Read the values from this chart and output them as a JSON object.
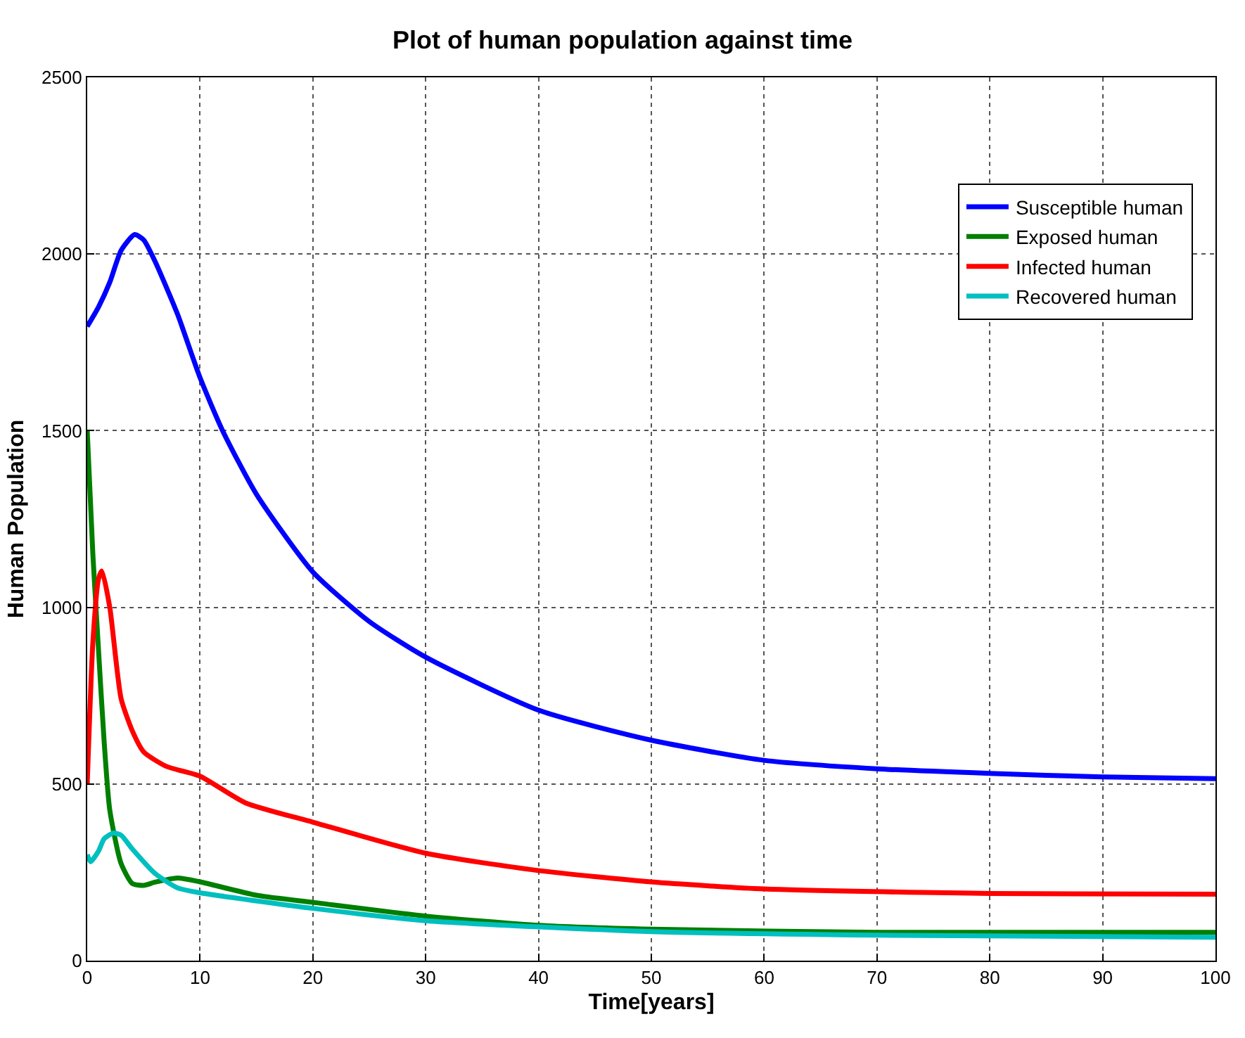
{
  "chart_data": {
    "type": "line",
    "title": "Plot of human population against time",
    "xlabel": "Time[years]",
    "ylabel": "Human Population",
    "xlim": [
      0,
      100
    ],
    "ylim": [
      0,
      2500
    ],
    "xticks": [
      0,
      10,
      20,
      30,
      40,
      50,
      60,
      70,
      80,
      90,
      100
    ],
    "yticks": [
      0,
      500,
      1000,
      1500,
      2000,
      2500
    ],
    "grid": true,
    "legend": "top right",
    "line_style": "solid",
    "series": [
      {
        "name": "Susceptible human",
        "color": "#0000ff",
        "x": [
          0,
          1,
          2,
          3,
          4.2,
          5,
          6,
          8,
          10,
          12,
          15,
          20,
          25,
          30,
          40,
          50,
          60,
          70,
          80,
          90,
          100
        ],
        "values": [
          1795,
          1850,
          1920,
          2010,
          2055,
          2040,
          1980,
          1830,
          1650,
          1500,
          1320,
          1100,
          960,
          859,
          709,
          624,
          567,
          543,
          530,
          520,
          515
        ]
      },
      {
        "name": "Exposed human",
        "color": "#007f00",
        "x": [
          0,
          0.5,
          1,
          1.5,
          2,
          3,
          4,
          5,
          6,
          8,
          10,
          15,
          20,
          30,
          40,
          50,
          70,
          100
        ],
        "values": [
          1500,
          1150,
          880,
          620,
          426,
          275,
          218,
          213,
          222,
          234,
          223,
          185,
          165,
          126,
          100,
          89,
          80,
          80
        ]
      },
      {
        "name": "Infected human",
        "color": "#ff0000",
        "x": [
          0,
          0.5,
          1,
          1.3,
          2,
          3,
          4,
          5,
          7,
          10,
          14,
          20,
          30,
          40,
          50,
          60,
          80,
          100
        ],
        "values": [
          500,
          900,
          1080,
          1103,
          1000,
          742,
          650,
          591,
          550,
          522,
          447,
          392,
          304,
          255,
          223,
          203,
          190,
          188
        ]
      },
      {
        "name": "Recovered human",
        "color": "#00bfbf",
        "x": [
          0,
          0.3,
          1,
          1.5,
          2.3,
          3,
          4,
          6,
          8,
          10,
          20,
          30,
          50,
          70,
          100
        ],
        "values": [
          300,
          280,
          310,
          345,
          361,
          355,
          316,
          247,
          206,
          192,
          148,
          113,
          82,
          72,
          66
        ]
      }
    ]
  }
}
